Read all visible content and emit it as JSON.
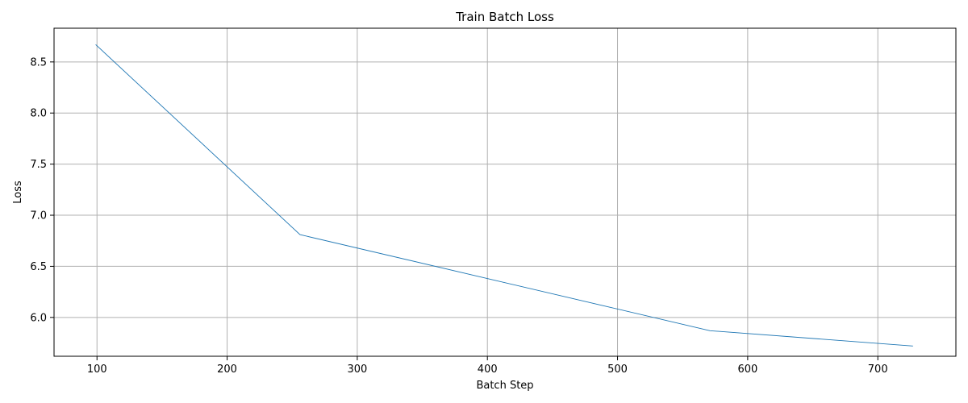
{
  "chart_data": {
    "type": "line",
    "title": "Train Batch Loss",
    "xlabel": "Batch Step",
    "ylabel": "Loss",
    "xlim": [
      67,
      760
    ],
    "ylim": [
      5.62,
      8.83
    ],
    "xticks": [
      100,
      200,
      300,
      400,
      500,
      600,
      700
    ],
    "yticks": [
      6.0,
      6.5,
      7.0,
      7.5,
      8.0,
      8.5
    ],
    "grid": true,
    "series": [
      {
        "color": "#1f77b4",
        "x": [
          99,
          256,
          571,
          727
        ],
        "y": [
          8.67,
          6.81,
          5.87,
          5.72
        ]
      }
    ]
  }
}
